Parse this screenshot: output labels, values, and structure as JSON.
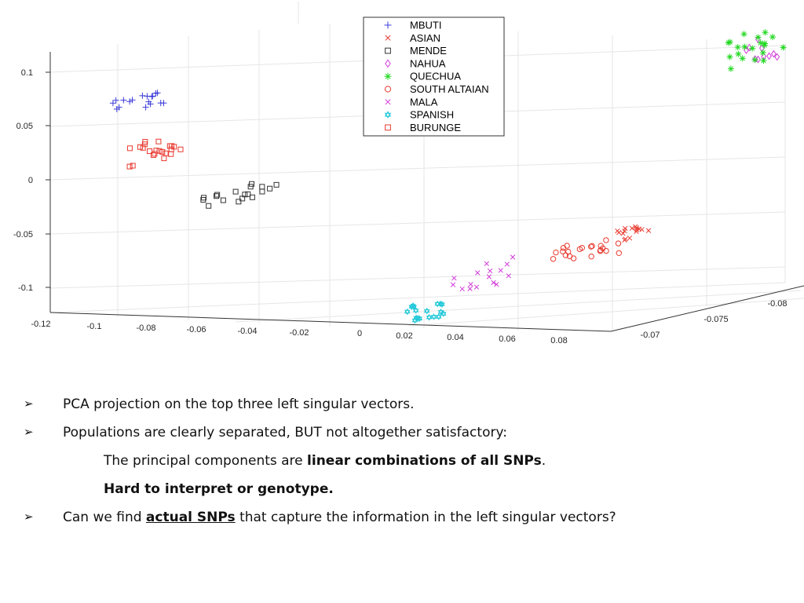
{
  "chart_data": {
    "type": "scatter",
    "projection": "3d",
    "grid": true,
    "legend_position": "top-center",
    "axes": {
      "x_ticks": [
        "-0.12",
        "-0.1",
        "-0.08",
        "-0.06",
        "-0.04",
        "-0.02",
        "0",
        "0.02",
        "0.04",
        "0.06",
        "0.08"
      ],
      "y_ticks": [
        "-0.07",
        "-0.075",
        "-0.08"
      ],
      "z_ticks": [
        "0.1",
        "0.05",
        "0",
        "-0.05",
        "-0.1"
      ],
      "xlim": [
        -0.12,
        0.08
      ],
      "zlim": [
        -0.1,
        0.1
      ]
    },
    "series": [
      {
        "name": "MBUTI",
        "marker": "plus",
        "color": "#3b3bd9",
        "x_range": [
          -0.1,
          -0.06
        ],
        "z_approx": 0.075
      },
      {
        "name": "ASIAN",
        "marker": "x",
        "color": "#e8392f",
        "x_range": [
          0.04,
          0.08
        ],
        "z_approx": -0.06
      },
      {
        "name": "MENDE",
        "marker": "square",
        "color": "#333333",
        "x_range": [
          -0.055,
          -0.035
        ],
        "z_approx": -0.015
      },
      {
        "name": "NAHUA",
        "marker": "diamond",
        "color": "#d13bd9",
        "x_range": [
          0.09,
          0.11
        ],
        "z_approx": 0.11
      },
      {
        "name": "QUECHUA",
        "marker": "asterisk",
        "color": "#22d922",
        "x_range": [
          0.09,
          0.11
        ],
        "z_approx": 0.12
      },
      {
        "name": "SOUTH ALTAIAN",
        "marker": "circle",
        "color": "#e8392f",
        "x_range": [
          0.02,
          0.06
        ],
        "z_approx": -0.065
      },
      {
        "name": "MALA",
        "marker": "x",
        "color": "#d13bd9",
        "x_range": [
          0.0,
          0.03
        ],
        "z_approx": -0.085
      },
      {
        "name": "SPANISH",
        "marker": "hexagram",
        "color": "#22c8d9",
        "x_range": [
          0.01,
          0.02
        ],
        "z_approx": -0.12
      },
      {
        "name": "BURUNGE",
        "marker": "square",
        "color": "#e8392f",
        "x_range": [
          -0.08,
          -0.06
        ],
        "z_approx": 0.03
      }
    ]
  },
  "notes": {
    "bullet_glyph": "➢",
    "line1": "PCA projection on the top three left singular vectors.",
    "line2": "Populations are clearly separated, BUT not altogether satisfactory:",
    "line3_pre": "The principal components are ",
    "line3_bold": "linear combinations of all SNPs",
    "line3_post": ".",
    "line4": "Hard to interpret or genotype.",
    "line5_pre": "Can we find ",
    "line5_underline": "actual SNPs",
    "line5_post": " that capture the information in the left singular vectors?"
  }
}
